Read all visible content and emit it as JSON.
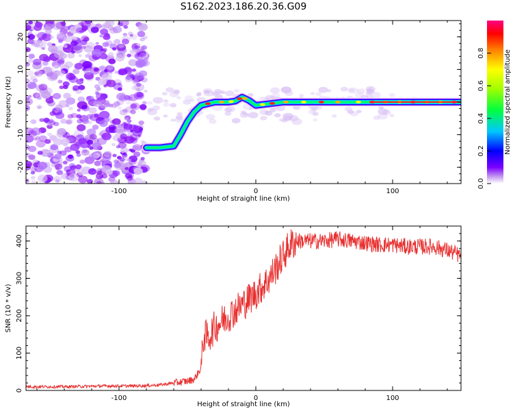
{
  "title": "S162.2023.186.20.36.G09",
  "chart_data": [
    {
      "type": "heatmap",
      "xlabel": "Height of straight line (km)",
      "ylabel": "Frequency (Hz)",
      "xlim": [
        -168,
        150
      ],
      "ylim": [
        -25,
        25
      ],
      "x_ticks": [
        -100,
        0,
        100
      ],
      "y_ticks": [
        -20,
        -10,
        0,
        10,
        20
      ],
      "grid": false,
      "colorbar": {
        "label": "Normalized spectral amplitude",
        "range": [
          0,
          1
        ],
        "ticks": [
          "0.0",
          "0.2",
          "0.4",
          "0.6",
          "0.8"
        ],
        "colors": [
          "#ffffff",
          "#c8a0f0",
          "#7a00ff",
          "#0000ff",
          "#00ffff",
          "#00ff00",
          "#ffff00",
          "#ff8000",
          "#ff0000",
          "#ff0080"
        ]
      },
      "ridge": {
        "x": [
          -80,
          -70,
          -60,
          -55,
          -50,
          -45,
          -40,
          -30,
          -20,
          -15,
          -10,
          -5,
          0,
          10,
          20,
          40,
          60,
          80,
          100,
          120,
          150
        ],
        "y": [
          -14,
          -14,
          -13.5,
          -10,
          -6,
          -3,
          -1,
          0,
          0,
          0.3,
          1.5,
          0.5,
          -1,
          -0.5,
          0,
          0,
          0,
          0,
          0,
          0,
          0
        ]
      }
    },
    {
      "type": "line",
      "xlabel": "Height of straight line (km)",
      "ylabel": "SNR (10 * v/v)",
      "xlim": [
        -168,
        150
      ],
      "ylim": [
        0,
        440
      ],
      "x_ticks": [
        -100,
        0,
        100
      ],
      "y_ticks": [
        0,
        100,
        200,
        300,
        400
      ],
      "grid": false,
      "line_color": "#e83030",
      "x": [
        -168,
        -140,
        -110,
        -90,
        -80,
        -70,
        -60,
        -50,
        -45,
        -40,
        -38,
        -35,
        -30,
        -20,
        -10,
        0,
        10,
        20,
        25,
        30,
        40,
        50,
        60,
        70,
        80,
        90,
        100,
        110,
        120,
        130,
        140,
        150
      ],
      "values": [
        10,
        10,
        12,
        12,
        13,
        15,
        20,
        25,
        30,
        60,
        150,
        140,
        170,
        200,
        230,
        260,
        300,
        360,
        390,
        400,
        400,
        400,
        405,
        400,
        395,
        390,
        390,
        385,
        385,
        385,
        375,
        360
      ]
    }
  ]
}
